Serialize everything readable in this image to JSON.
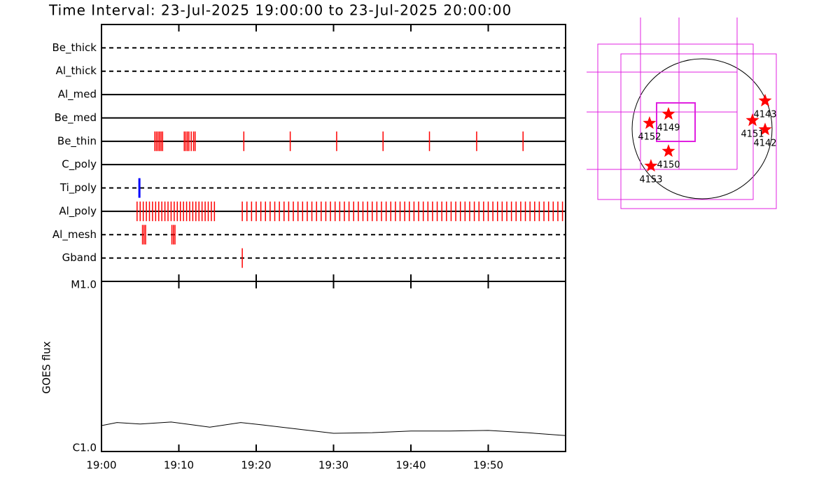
{
  "chart_data": [
    {
      "type": "timeline",
      "title": "Time Interval: 23-Jul-2025 19:00:00 to 23-Jul-2025 20:00:00",
      "categories": [
        "Be_thick",
        "Al_thick",
        "Al_med",
        "Be_med",
        "Be_thin",
        "C_poly",
        "Ti_poly",
        "Al_poly",
        "Al_mesh",
        "Gband"
      ],
      "line_styles": [
        "dashed",
        "dashed",
        "solid",
        "solid",
        "solid",
        "solid",
        "dashed",
        "solid",
        "dashed",
        "dashed"
      ],
      "colors": [
        "#ff0000",
        "#ff0000",
        "#ff0000",
        "#ff0000",
        "#ff0000",
        "#ff0000",
        "#0000ff",
        "#ff0000",
        "#ff0000",
        "#ff0000"
      ],
      "events": [
        [],
        [],
        [],
        [],
        [
          6.9,
          7.1,
          7.3,
          7.5,
          7.7,
          7.9,
          10.7,
          10.9,
          11.1,
          11.3,
          11.6,
          11.9,
          12.1,
          18.4,
          24.4,
          30.4,
          36.4,
          42.4,
          48.5,
          54.5
        ],
        [],
        [
          4.9
        ],
        [
          4.6,
          5,
          5.4,
          5.8,
          6.2,
          6.6,
          7,
          7.4,
          7.8,
          8.2,
          8.6,
          9,
          9.4,
          9.8,
          10.2,
          10.6,
          11,
          11.4,
          11.8,
          12.2,
          12.6,
          13,
          13.4,
          13.8,
          14.2,
          14.6,
          18.2,
          18.8,
          19.4,
          20,
          20.6,
          21.2,
          21.8,
          22.4,
          23,
          23.6,
          24.2,
          24.8,
          25.4,
          26,
          26.6,
          27.2,
          27.8,
          28.4,
          29,
          29.6,
          30.2,
          30.8,
          31.4,
          32,
          32.6,
          33.2,
          33.8,
          34.4,
          35,
          35.6,
          36.2,
          36.8,
          37.4,
          38,
          38.6,
          39.2,
          39.8,
          40.4,
          41,
          41.6,
          42.2,
          42.8,
          43.4,
          44,
          44.6,
          45.2,
          45.8,
          46.4,
          47,
          47.6,
          48.2,
          48.8,
          49.4,
          50,
          50.6,
          51.2,
          51.8,
          52.4,
          53,
          53.6,
          54.2,
          54.8,
          55.4,
          56,
          56.6,
          57.2,
          57.8,
          58.4,
          59,
          59.6
        ],
        [
          5.3,
          5.5,
          5.7,
          9.1,
          9.3,
          9.5
        ],
        [
          18.2
        ]
      ],
      "xlim": [
        0,
        60
      ]
    },
    {
      "type": "line",
      "ylabel": "GOES flux",
      "x": [
        0,
        2,
        5,
        9,
        12,
        14,
        18,
        21,
        25,
        30,
        35,
        40,
        45,
        50,
        55,
        60
      ],
      "values": [
        1.42e-06,
        1.48e-06,
        1.45e-06,
        1.49e-06,
        1.43e-06,
        1.39e-06,
        1.48e-06,
        1.43e-06,
        1.36e-06,
        1.28e-06,
        1.29e-06,
        1.32e-06,
        1.32e-06,
        1.33e-06,
        1.29e-06,
        1.24e-06
      ],
      "color": "#000000",
      "log_y": true,
      "xlim": [
        0,
        60
      ],
      "xticks": [
        {
          "value": 0,
          "label": "19:00"
        },
        {
          "value": 10,
          "label": "19:10"
        },
        {
          "value": 20,
          "label": "19:20"
        },
        {
          "value": 30,
          "label": "19:30"
        },
        {
          "value": 40,
          "label": "19:40"
        },
        {
          "value": 50,
          "label": "19:50"
        }
      ],
      "ylim": [
        1e-06,
        1e-05
      ],
      "yticks": [
        {
          "value": 1e-06,
          "label": "C1.0"
        },
        {
          "value": 1e-05,
          "label": "M1.0"
        }
      ]
    },
    {
      "type": "map",
      "x": [
        855,
        855,
        684,
        -456,
        -713,
        -456,
        -694
      ],
      "y": [
        380,
        -10,
        114,
        200,
        76,
        -304,
        -504
      ],
      "labels": [
        "4143",
        "4142",
        "4151",
        "4149",
        "4152",
        "4150",
        "4153"
      ],
      "color": "#ff0000"
    }
  ]
}
